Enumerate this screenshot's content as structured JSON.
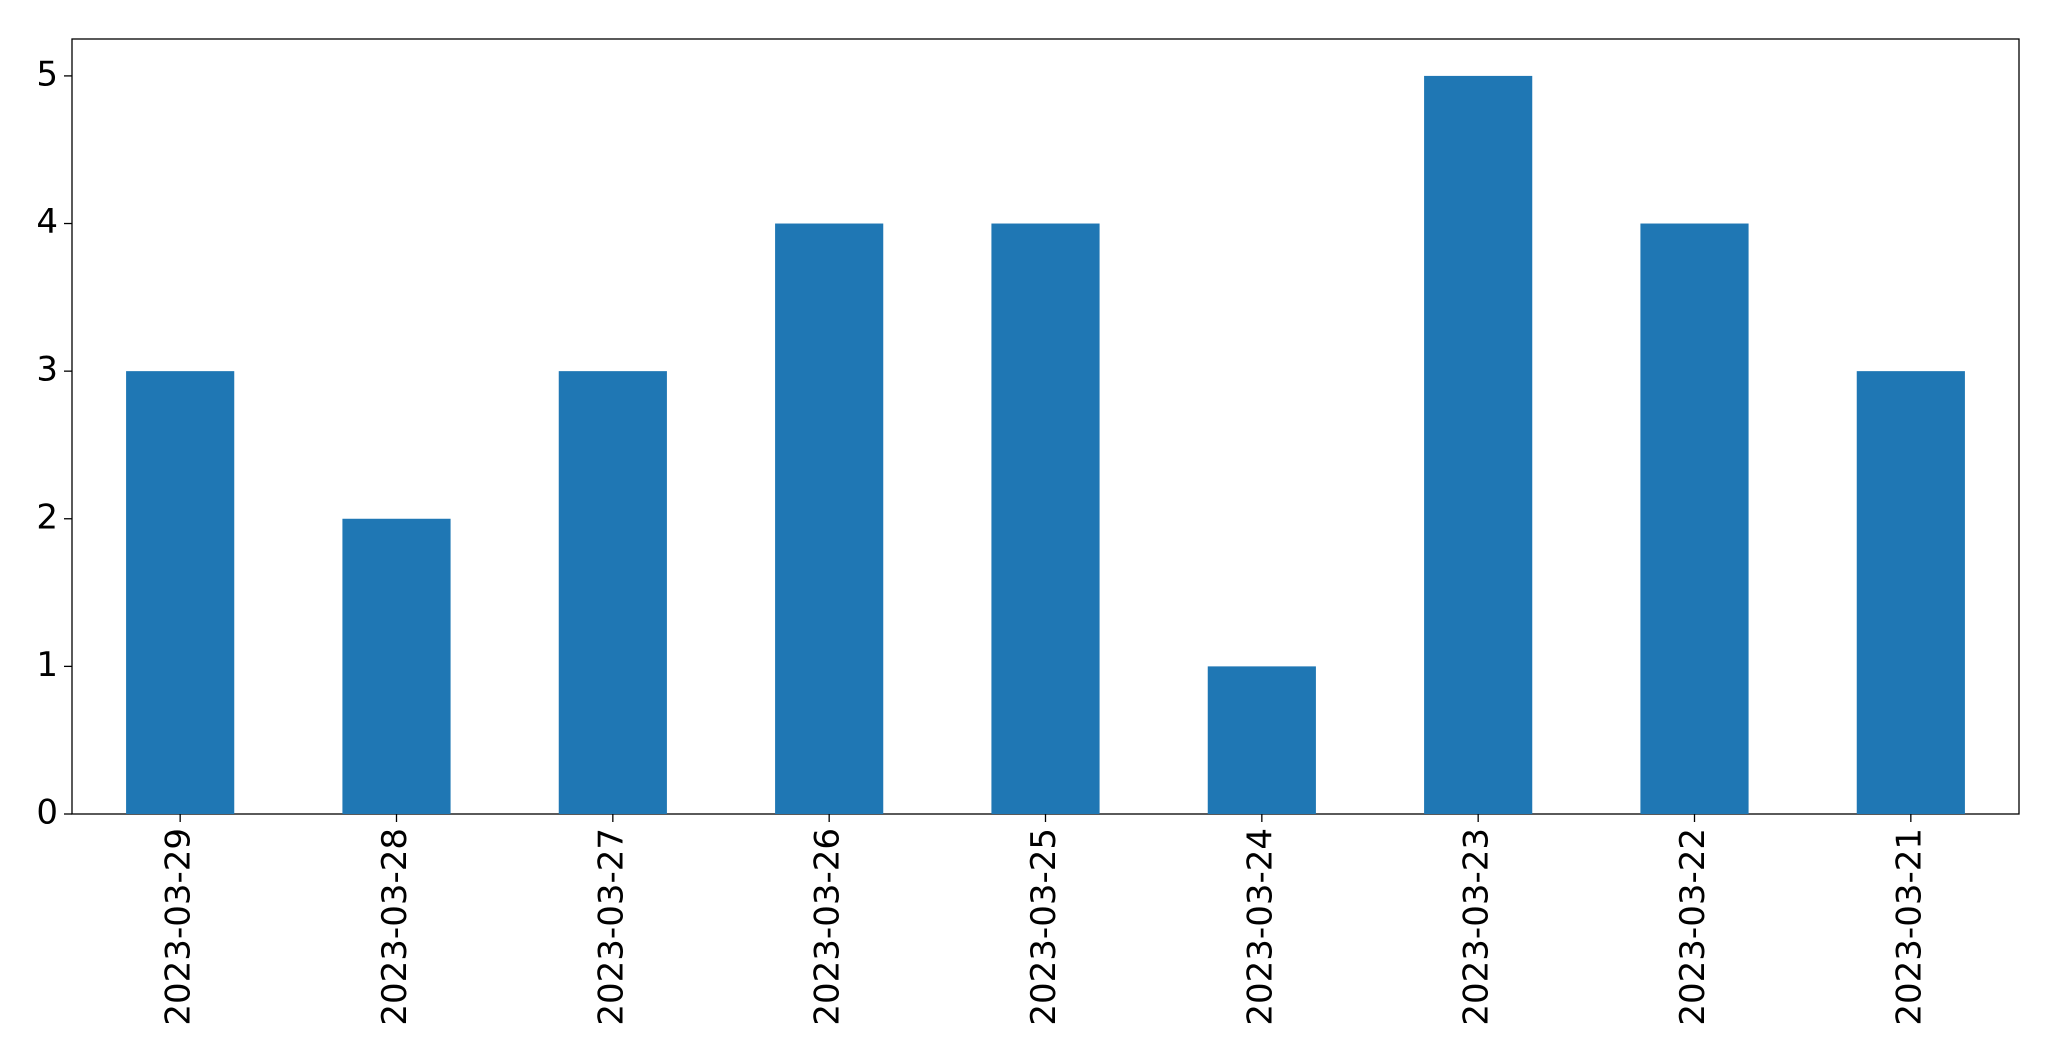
{
  "chart_data": {
    "type": "bar",
    "categories": [
      "2023-03-29",
      "2023-03-28",
      "2023-03-27",
      "2023-03-26",
      "2023-03-25",
      "2023-03-24",
      "2023-03-23",
      "2023-03-22",
      "2023-03-21"
    ],
    "values": [
      3,
      2,
      3,
      4,
      4,
      1,
      5,
      4,
      3
    ],
    "color": "#1f77b4",
    "ylim": [
      0,
      5.25
    ],
    "yticks": [
      0,
      1,
      2,
      3,
      4,
      5
    ],
    "grid": false
  }
}
